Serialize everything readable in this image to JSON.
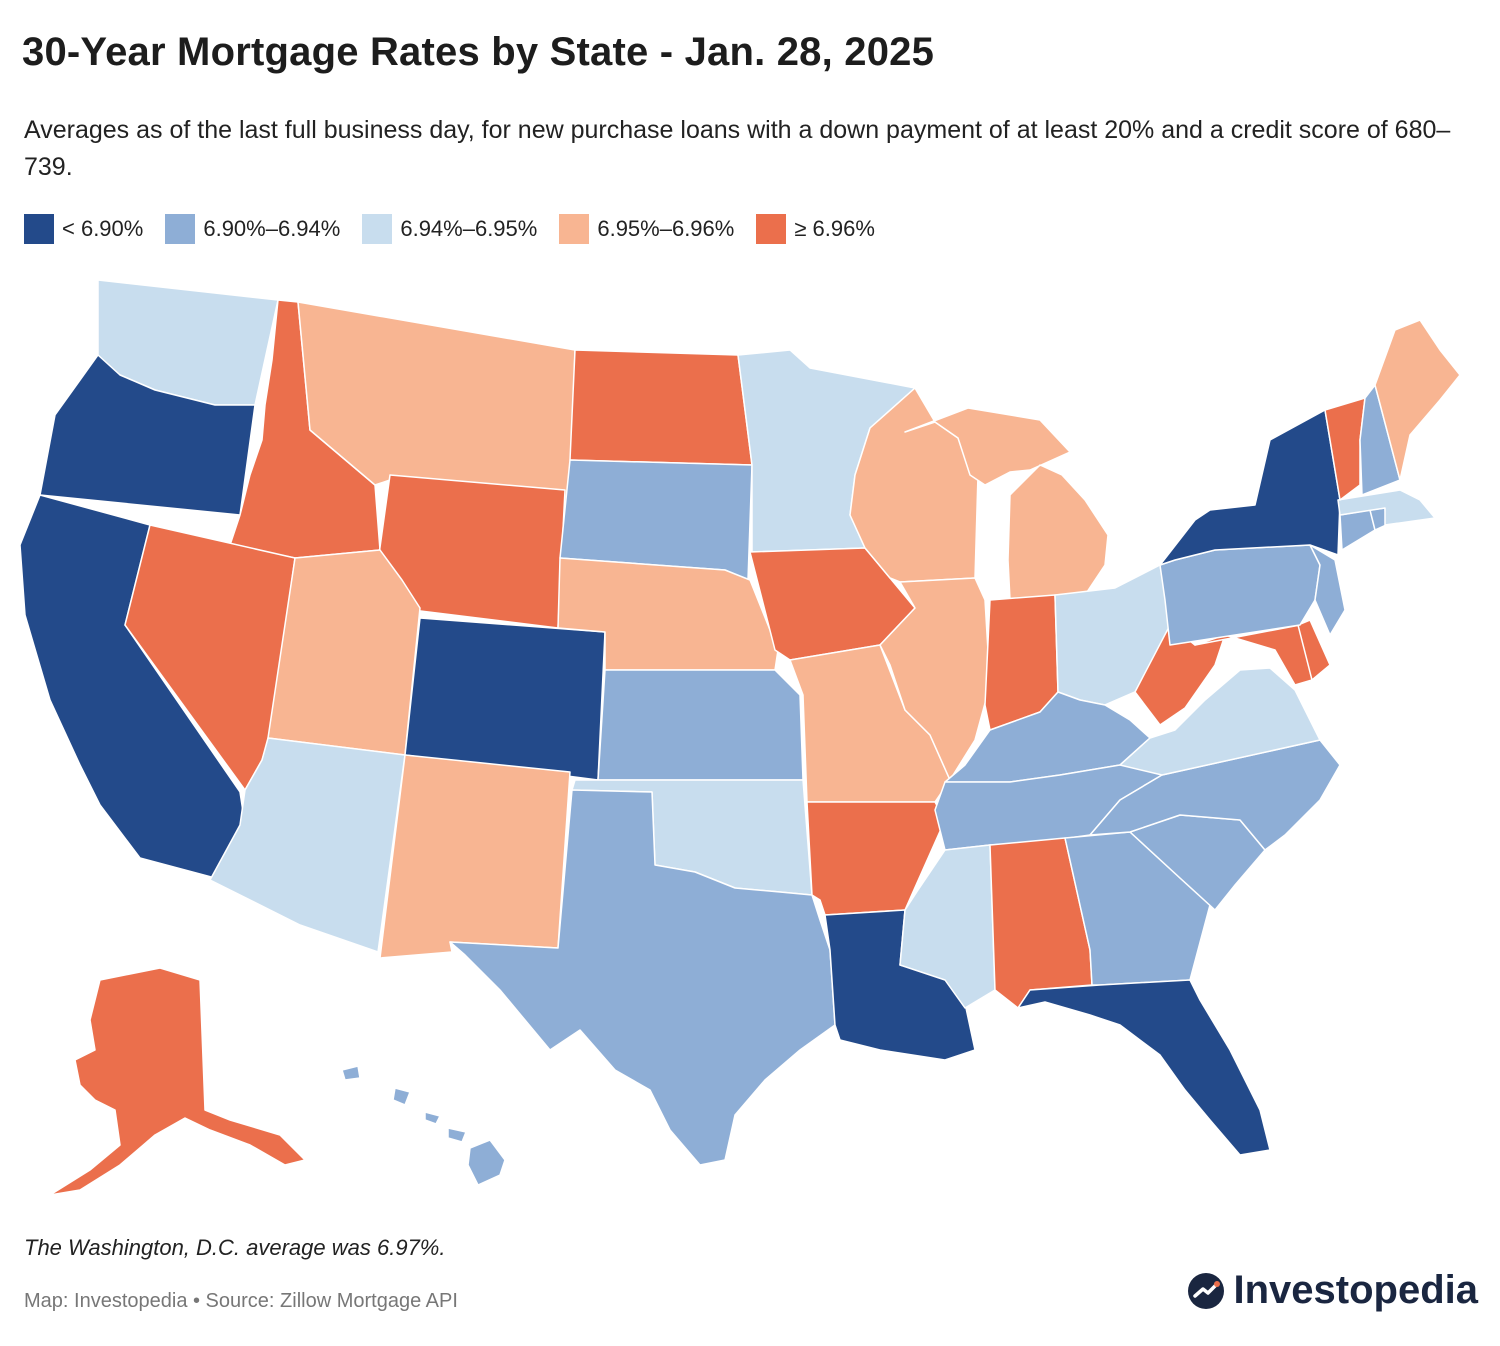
{
  "title": "30-Year Mortgage Rates by State - Jan. 28, 2025",
  "subtitle": "Averages as of the last full business day, for new purchase loans with a down payment of at least 20% and a credit score of 680–739.",
  "legend": [
    {
      "label": "< 6.90%",
      "color": "#234a8a"
    },
    {
      "label": "6.90%–6.94%",
      "color": "#8eaed6"
    },
    {
      "label": "6.94%–6.95%",
      "color": "#c8ddee"
    },
    {
      "label": "6.95%–6.96%",
      "color": "#f8b592"
    },
    {
      "label": "≥ 6.96%",
      "color": "#eb6f4c"
    }
  ],
  "map_data": {
    "type": "choropleth",
    "region": "United States",
    "states": [
      {
        "state": "WA",
        "bin": 2
      },
      {
        "state": "OR",
        "bin": 0
      },
      {
        "state": "CA",
        "bin": 0
      },
      {
        "state": "ID",
        "bin": 4
      },
      {
        "state": "NV",
        "bin": 4
      },
      {
        "state": "MT",
        "bin": 3
      },
      {
        "state": "WY",
        "bin": 4
      },
      {
        "state": "UT",
        "bin": 3
      },
      {
        "state": "AZ",
        "bin": 2
      },
      {
        "state": "CO",
        "bin": 0
      },
      {
        "state": "NM",
        "bin": 3
      },
      {
        "state": "ND",
        "bin": 4
      },
      {
        "state": "SD",
        "bin": 1
      },
      {
        "state": "NE",
        "bin": 3
      },
      {
        "state": "KS",
        "bin": 1
      },
      {
        "state": "OK",
        "bin": 2
      },
      {
        "state": "TX",
        "bin": 1
      },
      {
        "state": "MN",
        "bin": 2
      },
      {
        "state": "IA",
        "bin": 4
      },
      {
        "state": "MO",
        "bin": 3
      },
      {
        "state": "AR",
        "bin": 4
      },
      {
        "state": "LA",
        "bin": 0
      },
      {
        "state": "WI",
        "bin": 3
      },
      {
        "state": "IL",
        "bin": 3
      },
      {
        "state": "MI",
        "bin": 3
      },
      {
        "state": "IN",
        "bin": 4
      },
      {
        "state": "OH",
        "bin": 2
      },
      {
        "state": "KY",
        "bin": 1
      },
      {
        "state": "TN",
        "bin": 1
      },
      {
        "state": "MS",
        "bin": 2
      },
      {
        "state": "AL",
        "bin": 4
      },
      {
        "state": "GA",
        "bin": 1
      },
      {
        "state": "FL",
        "bin": 0
      },
      {
        "state": "SC",
        "bin": 1
      },
      {
        "state": "NC",
        "bin": 1
      },
      {
        "state": "VA",
        "bin": 2
      },
      {
        "state": "WV",
        "bin": 4
      },
      {
        "state": "MD",
        "bin": 4
      },
      {
        "state": "DE",
        "bin": 4
      },
      {
        "state": "PA",
        "bin": 1
      },
      {
        "state": "NJ",
        "bin": 1
      },
      {
        "state": "NY",
        "bin": 0
      },
      {
        "state": "CT",
        "bin": 1
      },
      {
        "state": "RI",
        "bin": 1
      },
      {
        "state": "MA",
        "bin": 2
      },
      {
        "state": "VT",
        "bin": 4
      },
      {
        "state": "NH",
        "bin": 1
      },
      {
        "state": "ME",
        "bin": 3
      },
      {
        "state": "AK",
        "bin": 4
      },
      {
        "state": "HI",
        "bin": 1
      }
    ]
  },
  "footnote": "The Washington, D.C. average was 6.97%.",
  "source": "Map: Investopedia • Source: Zillow Mortgage API",
  "brand": "Investopedia",
  "brand_color": "#1a2640"
}
